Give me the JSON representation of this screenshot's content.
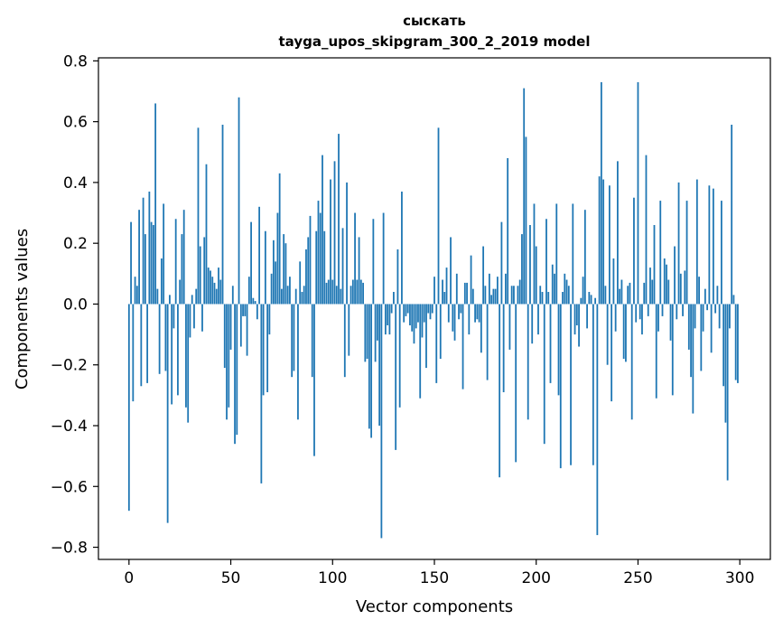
{
  "chart_data": {
    "type": "bar",
    "title": "сыскать",
    "subtitle": "tayga_upos_skipgram_300_2_2019 model",
    "xlabel": "Vector components",
    "ylabel": "Components values",
    "xlim": [
      -15,
      315
    ],
    "ylim": [
      -0.84,
      0.81
    ],
    "x_ticks": [
      0,
      50,
      100,
      150,
      200,
      250,
      300
    ],
    "y_ticks": [
      -0.8,
      -0.6,
      -0.4,
      -0.2,
      0.0,
      0.2,
      0.4,
      0.6,
      0.8
    ],
    "y_tick_labels": [
      "−0.8",
      "−0.6",
      "−0.4",
      "−0.2",
      "0.0",
      "0.2",
      "0.4",
      "0.6",
      "0.8"
    ],
    "bar_color": "#1f77b4",
    "values": [
      -0.68,
      0.27,
      -0.32,
      0.09,
      0.06,
      0.31,
      -0.27,
      0.35,
      0.23,
      -0.26,
      0.37,
      0.27,
      0.26,
      0.66,
      0.05,
      -0.23,
      0.15,
      0.33,
      -0.22,
      -0.72,
      0.03,
      -0.33,
      -0.08,
      0.28,
      -0.3,
      0.08,
      0.23,
      0.31,
      -0.34,
      -0.39,
      -0.11,
      0.03,
      -0.08,
      0.05,
      0.58,
      0.19,
      -0.09,
      0.22,
      0.46,
      0.12,
      0.11,
      0.09,
      0.07,
      0.05,
      0.12,
      0.08,
      0.59,
      -0.21,
      -0.38,
      -0.34,
      -0.15,
      0.06,
      -0.46,
      -0.43,
      0.68,
      -0.14,
      -0.04,
      -0.04,
      -0.17,
      0.09,
      0.27,
      0.02,
      0.01,
      -0.05,
      0.32,
      -0.59,
      -0.3,
      0.24,
      -0.29,
      -0.1,
      0.1,
      0.21,
      0.14,
      0.3,
      0.43,
      0.05,
      0.23,
      0.2,
      0.06,
      0.09,
      -0.24,
      -0.22,
      0.05,
      -0.38,
      0.14,
      0.04,
      0.06,
      0.18,
      0.22,
      0.29,
      -0.24,
      -0.5,
      0.24,
      0.34,
      0.3,
      0.49,
      0.24,
      0.07,
      0.08,
      0.41,
      0.08,
      0.47,
      0.06,
      0.56,
      0.05,
      0.25,
      -0.24,
      0.4,
      -0.17,
      0.06,
      0.08,
      0.3,
      0.08,
      0.22,
      0.08,
      0.07,
      -0.19,
      -0.18,
      -0.41,
      -0.44,
      0.28,
      -0.19,
      -0.12,
      -0.4,
      -0.77,
      0.3,
      -0.1,
      -0.07,
      -0.1,
      -0.03,
      0.04,
      -0.48,
      0.18,
      -0.34,
      0.37,
      -0.06,
      -0.04,
      -0.03,
      -0.07,
      -0.09,
      -0.13,
      -0.08,
      -0.06,
      -0.31,
      -0.11,
      -0.06,
      -0.21,
      -0.03,
      -0.05,
      -0.03,
      0.09,
      -0.26,
      0.58,
      -0.18,
      0.08,
      0.04,
      0.12,
      -0.06,
      0.22,
      -0.09,
      -0.12,
      0.1,
      -0.05,
      -0.03,
      -0.28,
      0.07,
      0.07,
      -0.1,
      0.16,
      0.05,
      -0.06,
      -0.05,
      -0.06,
      -0.16,
      0.19,
      0.06,
      -0.25,
      0.1,
      0.03,
      0.05,
      0.05,
      0.09,
      -0.57,
      0.27,
      -0.29,
      0.1,
      0.48,
      -0.15,
      0.06,
      0.06,
      -0.52,
      0.06,
      0.08,
      0.23,
      0.71,
      0.55,
      -0.38,
      0.26,
      -0.13,
      0.33,
      0.19,
      -0.1,
      0.06,
      0.04,
      -0.46,
      0.28,
      0.04,
      -0.26,
      0.13,
      0.1,
      0.33,
      -0.3,
      -0.54,
      0.04,
      0.1,
      0.08,
      0.06,
      -0.53,
      0.33,
      -0.1,
      -0.07,
      -0.14,
      0.02,
      0.09,
      0.31,
      -0.08,
      0.04,
      0.03,
      -0.53,
      0.02,
      -0.76,
      0.42,
      0.73,
      0.41,
      0.06,
      -0.2,
      0.39,
      -0.32,
      0.15,
      -0.09,
      0.47,
      0.05,
      0.08,
      -0.18,
      -0.19,
      0.06,
      0.07,
      -0.38,
      0.35,
      -0.06,
      0.73,
      -0.05,
      -0.1,
      0.07,
      0.49,
      -0.04,
      0.12,
      0.08,
      0.26,
      -0.31,
      -0.09,
      0.34,
      -0.04,
      0.15,
      0.13,
      0.08,
      -0.12,
      -0.3,
      0.19,
      -0.05,
      0.4,
      0.1,
      -0.04,
      0.11,
      0.34,
      -0.15,
      -0.24,
      -0.36,
      -0.08,
      0.41,
      0.09,
      -0.22,
      -0.09,
      0.05,
      -0.02,
      0.39,
      -0.16,
      0.38,
      -0.03,
      0.06,
      -0.08,
      0.34,
      -0.27,
      -0.39,
      -0.58,
      -0.08,
      0.59,
      0.03,
      -0.25,
      -0.26
    ]
  }
}
